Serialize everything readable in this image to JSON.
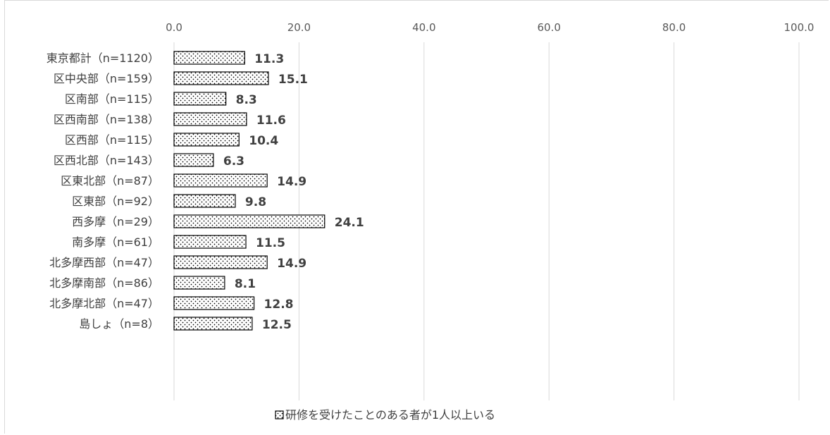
{
  "chart_data": {
    "type": "bar",
    "orientation": "horizontal",
    "categories": [
      "東京都計（n=1120）",
      "区中央部（n=159）",
      "区南部（n=115）",
      "区西南部（n=138）",
      "区西部（n=115）",
      "区西北部（n=143）",
      "区東北部（n=87）",
      "区東部（n=92）",
      "西多摩（n=29）",
      "南多摩（n=61）",
      "北多摩西部（n=47）",
      "北多摩南部（n=86）",
      "北多摩北部（n=47）",
      "島しょ（n=8）"
    ],
    "series": [
      {
        "name": "研修を受けたことのある者が1人以上いる",
        "values": [
          11.3,
          15.1,
          8.3,
          11.6,
          10.4,
          6.3,
          14.9,
          9.8,
          24.1,
          11.5,
          14.9,
          8.1,
          12.8,
          12.5
        ]
      }
    ],
    "value_labels": [
      "11.3",
      "15.1",
      "8.3",
      "11.6",
      "10.4",
      "6.3",
      "14.9",
      "9.8",
      "24.1",
      "11.5",
      "14.9",
      "8.1",
      "12.8",
      "12.5"
    ],
    "xlim": [
      0,
      100
    ],
    "xticks": [
      0,
      20,
      40,
      60,
      80,
      100
    ],
    "xtick_labels": [
      "0.0",
      "20.0",
      "40.0",
      "60.0",
      "80.0",
      "100.0"
    ],
    "x_axis_position": "top",
    "grid": true,
    "legend_position": "bottom",
    "bar_pattern": "dotted",
    "colors": {
      "bar_fill": "#ffffff",
      "bar_stroke": "#000000",
      "dots": "#000000",
      "grid": "#d9d9d9",
      "text": "#404040"
    }
  }
}
